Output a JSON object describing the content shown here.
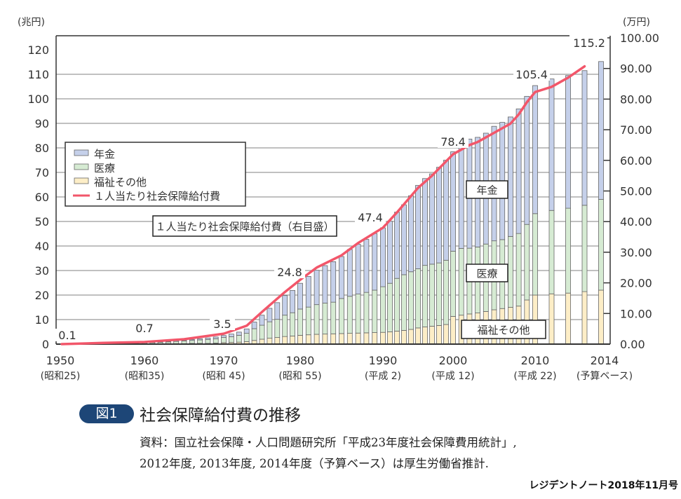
{
  "chart_data": {
    "type": "bar",
    "stacked": true,
    "title": "社会保障給付費の推移",
    "figure_label": "図1",
    "left_axis_unit": "(兆円)",
    "right_axis_unit": "(万円)",
    "ylim_left": [
      0,
      120
    ],
    "ylim_right": [
      0,
      100
    ],
    "left_ticks": [
      "0",
      "10",
      "20",
      "30",
      "40",
      "50",
      "60",
      "70",
      "80",
      "90",
      "100",
      "110",
      "120"
    ],
    "right_ticks": [
      "0.00",
      "10.00",
      "20.00",
      "30.00",
      "40.00",
      "50.00",
      "60.00",
      "70.00",
      "80.00",
      "90.00",
      "100.00"
    ],
    "x_tick_years": [
      1950,
      1960,
      1970,
      1980,
      1990,
      2000,
      2010,
      2014
    ],
    "x_tick_labels": [
      "1950",
      "1960",
      "1970",
      "1980",
      "1990",
      "2000",
      "2010",
      "2014"
    ],
    "x_tick_sublabels": [
      "(昭和25)",
      "(昭和35)",
      "(昭和 45)",
      "(昭和 55)",
      "(平成 2)",
      "(平成 12)",
      "(平成 22)",
      "(予算ベース)"
    ],
    "years_start": 1950,
    "series": [
      {
        "name": "年金",
        "color": "#c5d0ea",
        "values": [
          0,
          0.1,
          0.1,
          0.1,
          0.1,
          0.1,
          0.1,
          0.1,
          0.1,
          0.2,
          0.2,
          0.2,
          0.2,
          0.2,
          0.3,
          0.3,
          0.4,
          0.5,
          0.6,
          0.7,
          0.8,
          1.1,
          1.3,
          1.8,
          2.7,
          4.1,
          5.5,
          6.8,
          8.0,
          9.1,
          10.5,
          12.5,
          14.0,
          15.3,
          16.5,
          17.1,
          19.1,
          20.3,
          21.6,
          23.1,
          24.0,
          25.3,
          27.0,
          28.5,
          31.0,
          34.0,
          35.4,
          36.8,
          39.0,
          40.8,
          40.5,
          42.4,
          44.5,
          44.7,
          45.2,
          46.7,
          47.8,
          48.7,
          50.8,
          52.2,
          52.2,
          53.6,
          54.1,
          54.9,
          56.2
        ]
      },
      {
        "name": "医療",
        "color": "#d6ebd3",
        "values": [
          0.1,
          0.1,
          0.1,
          0.1,
          0.2,
          0.2,
          0.2,
          0.2,
          0.3,
          0.3,
          0.4,
          0.5,
          0.6,
          0.7,
          0.9,
          1.1,
          1.2,
          1.4,
          1.6,
          1.8,
          2.1,
          2.3,
          2.8,
          3.4,
          4.8,
          5.7,
          6.7,
          7.4,
          8.7,
          9.5,
          10.7,
          11.3,
          12.1,
          12.6,
          12.9,
          14.3,
          15.1,
          15.9,
          16.5,
          17.3,
          18.6,
          19.8,
          21.5,
          22.7,
          23.5,
          24.1,
          25.1,
          25.3,
          25.5,
          26.2,
          26.6,
          27.2,
          26.8,
          26.9,
          27.5,
          28.1,
          28.1,
          28.9,
          29.6,
          30.8,
          33.2,
          34.0,
          34.6,
          35.2,
          37.0
        ]
      },
      {
        "name": "福祉その他",
        "color": "#fdeec7",
        "values": [
          0,
          0,
          0,
          0.1,
          0.1,
          0.1,
          0.1,
          0.1,
          0.1,
          0.1,
          0.1,
          0.1,
          0.1,
          0.2,
          0.2,
          0.2,
          0.3,
          0.3,
          0.3,
          0.4,
          0.6,
          0.7,
          0.8,
          1.0,
          1.5,
          2.0,
          2.4,
          2.7,
          3.1,
          3.3,
          3.6,
          3.8,
          4.0,
          4.1,
          4.2,
          4.3,
          4.4,
          4.5,
          4.6,
          4.7,
          4.8,
          5.0,
          5.3,
          5.6,
          6.0,
          6.6,
          7.0,
          7.3,
          7.6,
          8.0,
          11.3,
          11.8,
          12.3,
          12.7,
          13.3,
          14.0,
          14.5,
          15.0,
          15.5,
          18.0,
          20.0,
          20.5,
          20.8,
          21.4,
          22.0
        ]
      }
    ],
    "line_series": {
      "name": "1人当たり社会保障給付費",
      "axis": "right",
      "color": "#f2566a",
      "points": [
        [
          1950,
          0
        ],
        [
          1955,
          0.4
        ],
        [
          1960,
          0.7
        ],
        [
          1965,
          1.6
        ],
        [
          1970,
          3.4
        ],
        [
          1973,
          6
        ],
        [
          1975,
          10.5
        ],
        [
          1978,
          17
        ],
        [
          1980,
          21
        ],
        [
          1982,
          25
        ],
        [
          1985,
          29
        ],
        [
          1987,
          33
        ],
        [
          1990,
          38
        ],
        [
          1992,
          43
        ],
        [
          1995,
          51
        ],
        [
          1997,
          55
        ],
        [
          2000,
          62
        ],
        [
          2002,
          65
        ],
        [
          2003,
          66
        ],
        [
          2005,
          69
        ],
        [
          2007,
          72
        ],
        [
          2008,
          75
        ],
        [
          2009,
          79
        ],
        [
          2010,
          82.3
        ],
        [
          2011,
          84
        ],
        [
          2012,
          87
        ],
        [
          2013,
          90.7
        ]
      ]
    },
    "total_labels": [
      {
        "year": 1950,
        "text": "0.1"
      },
      {
        "year": 1960,
        "text": "0.7"
      },
      {
        "year": 1970,
        "text": "3.5"
      },
      {
        "year": 1980,
        "text": "24.8"
      },
      {
        "year": 1990,
        "text": "47.4"
      },
      {
        "year": 2000,
        "text": "78.4"
      },
      {
        "year": 2010,
        "text": "105.4"
      },
      {
        "year": 2014,
        "text": "115.2"
      }
    ],
    "legend": [
      "年金",
      "医療",
      "福祉その他",
      "１人当たり社会保障給付費"
    ],
    "legend_placement": "top-left",
    "annotations": {
      "line_note": "１人当たり社会保障給付費（右目盛）",
      "pension": "年金",
      "medical": "医療",
      "welfare": "福祉その他"
    },
    "grid": true
  },
  "caption": {
    "badge": "図1",
    "title": "社会保障給付費の推移",
    "source_line1": "資料：国立社会保障・人口問題研究所「平成23年度社会保障費用統計」,",
    "source_line2": "2012年度, 2013年度, 2014年度（予算ベース）は厚生労働省推計."
  },
  "publication": "レジデントノート2018年11月号"
}
